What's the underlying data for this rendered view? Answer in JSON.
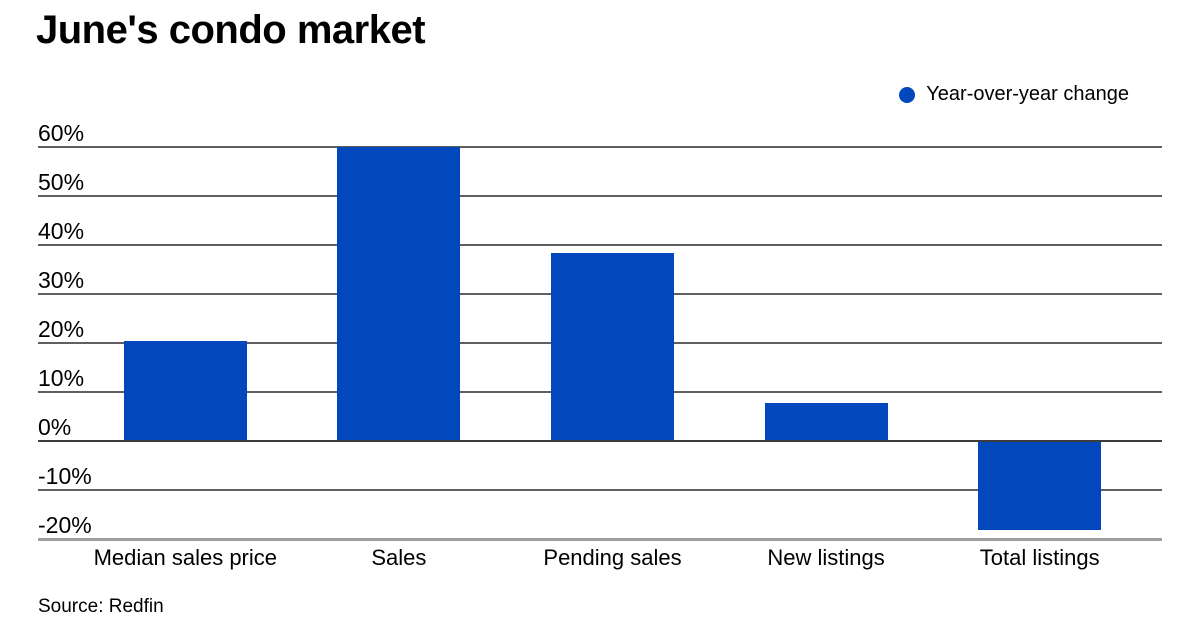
{
  "title": "June's condo market",
  "legend": {
    "label": "Year-over-year change"
  },
  "source": "Source: Redfin",
  "colors": {
    "bar": "#0347bc",
    "grid": "#5f5f5f",
    "zero_line": "#3d3d3d",
    "bottom_line": "#9e9e9e",
    "text": "#000000",
    "background": "#ffffff"
  },
  "chart_data": {
    "type": "bar",
    "title": "June's condo market",
    "series_name": "Year-over-year change",
    "categories": [
      "Median sales price",
      "Sales",
      "Pending sales",
      "New listings",
      "Total listings"
    ],
    "values": [
      20.3,
      59.9,
      38.3,
      7.7,
      -18.1
    ],
    "unit": "%",
    "xlabel": "",
    "ylabel": "",
    "ylim": [
      -20,
      60
    ],
    "yticks": [
      60,
      50,
      40,
      30,
      20,
      10,
      0,
      -10,
      -20
    ],
    "ytick_format": "{v}%",
    "grid": true,
    "legend_position": "top-right",
    "source": "Source: Redfin"
  }
}
